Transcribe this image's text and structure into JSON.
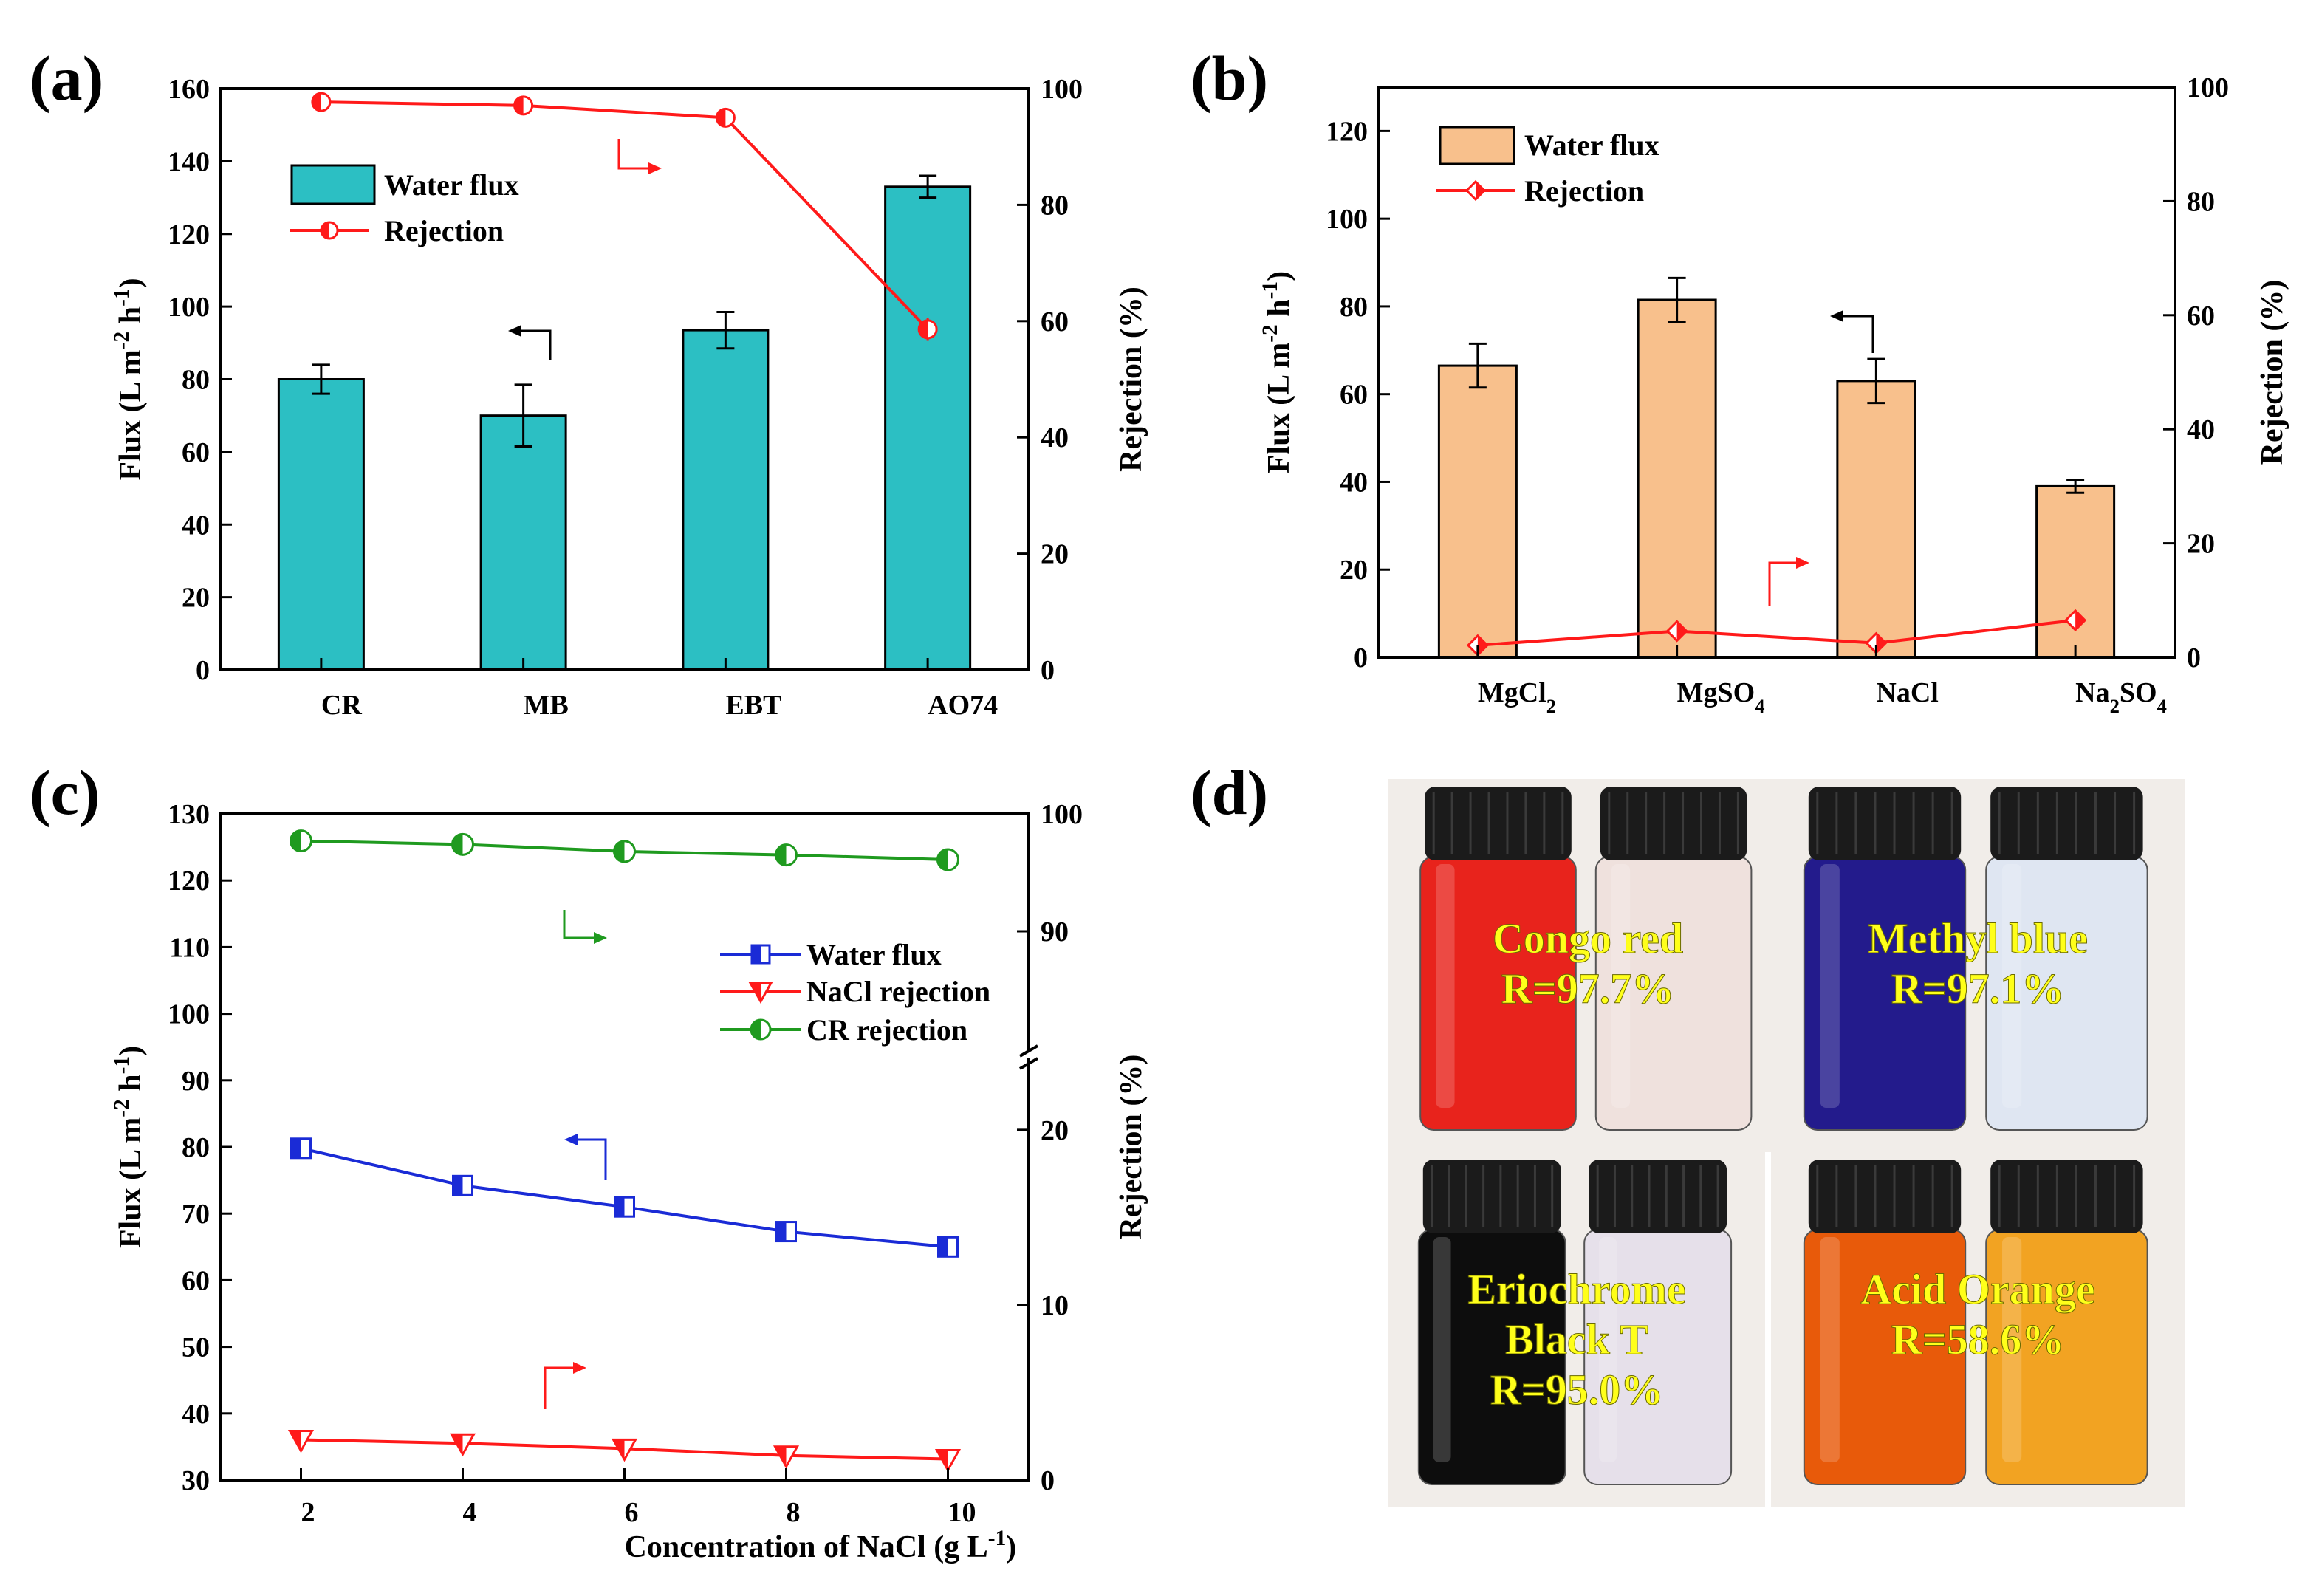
{
  "colors": {
    "teal": "#2cbfc3",
    "peach": "#f8c08c",
    "red": "#ff1a1a",
    "blue": "#1a2bd6",
    "green": "#1f9a1f",
    "caption_yellow": "#ffff1a"
  },
  "chart_data": [
    {
      "panel": "(a)",
      "type": "bar",
      "categories": [
        "CR",
        "MB",
        "EBT",
        "AO74"
      ],
      "series": [
        {
          "name": "Water flux",
          "axis": "left",
          "type": "bar",
          "values": [
            80,
            70,
            93.5,
            133
          ],
          "errors": [
            4,
            8.5,
            5,
            3
          ]
        },
        {
          "name": "Rejection",
          "axis": "right",
          "type": "line",
          "values": [
            97.7,
            97.1,
            95.0,
            58.6
          ],
          "errors": [
            0,
            0,
            0,
            2
          ]
        }
      ],
      "ylabel": "Flux (L m-2 h-1)",
      "y2label": "Rejection (%)",
      "ylim": [
        0,
        160
      ],
      "y2lim": [
        0,
        100
      ],
      "yticks": [
        "0",
        "20",
        "40",
        "60",
        "80",
        "100",
        "120",
        "140",
        "160"
      ],
      "y2ticks": [
        "0",
        "20",
        "40",
        "60",
        "80",
        "100"
      ],
      "legend": [
        "Water flux",
        "Rejection"
      ]
    },
    {
      "panel": "(b)",
      "type": "bar",
      "categories": [
        "MgCl2",
        "MgSO4",
        "NaCl",
        "Na2SO4"
      ],
      "series": [
        {
          "name": "Water flux",
          "axis": "left",
          "type": "bar",
          "values": [
            66.5,
            81.5,
            63,
            39
          ],
          "errors": [
            5,
            5,
            5,
            1.5
          ]
        },
        {
          "name": "Rejection",
          "axis": "right",
          "type": "line",
          "values": [
            2.1,
            4.6,
            2.5,
            6.5
          ]
        }
      ],
      "ylabel": "Flux (L m-2 h-1)",
      "y2label": "Rejection (%)",
      "ylim": [
        0,
        130
      ],
      "y2lim": [
        0,
        100
      ],
      "yticks": [
        "0",
        "20",
        "40",
        "60",
        "80",
        "100",
        "120"
      ],
      "y2ticks": [
        "0",
        "20",
        "40",
        "60",
        "80",
        "100"
      ],
      "legend": [
        "Water flux",
        "Rejection"
      ]
    },
    {
      "panel": "(c)",
      "type": "line",
      "x": [
        2,
        4,
        6,
        8,
        10
      ],
      "series": [
        {
          "name": "Water flux",
          "axis": "left",
          "values": [
            79.8,
            74.2,
            71,
            67.3,
            65
          ]
        },
        {
          "name": "NaCl rejection",
          "axis": "right",
          "values": [
            2.3,
            2.1,
            1.8,
            1.4,
            1.2
          ]
        },
        {
          "name": "CR rejection",
          "axis": "right",
          "values": [
            97.7,
            97.4,
            96.8,
            96.5,
            96.1
          ]
        }
      ],
      "xlabel": "Concentration of NaCl (g L-1)",
      "ylabel": "Flux (L m-2 h-1)",
      "y2label": "Rejection (%)",
      "xlim": [
        1,
        11
      ],
      "ylim": [
        30,
        130
      ],
      "y2lim_lower": [
        0,
        24
      ],
      "y2lim_upper": [
        80,
        100
      ],
      "xticks": [
        "2",
        "4",
        "6",
        "8",
        "10"
      ],
      "yticks": [
        "30",
        "40",
        "50",
        "60",
        "70",
        "80",
        "90",
        "100",
        "110",
        "120",
        "130"
      ],
      "y2ticks": [
        "0",
        "10",
        "20",
        "90",
        "100"
      ],
      "legend": [
        "Water flux",
        "NaCl rejection",
        "CR rejection"
      ]
    }
  ],
  "photos": {
    "label": "(d)",
    "items": [
      {
        "line1": "Congo red",
        "line2": "R=97.7%",
        "dye_color": "#e8231c",
        "permeate_color": "#efe1dd"
      },
      {
        "line1": "Methyl blue",
        "line2": "R=97.1%",
        "dye_color": "#231b8c",
        "permeate_color": "#dfe6f2"
      },
      {
        "line1": "Eriochrome",
        "line2": "Black T",
        "line3": "R=95.0%",
        "dye_color": "#0d0d0d",
        "permeate_color": "#e6e0ea"
      },
      {
        "line1": "Acid Orange",
        "line2": "R=58.6%",
        "dye_color": "#e85a0a",
        "permeate_color": "#f2a322"
      }
    ]
  }
}
